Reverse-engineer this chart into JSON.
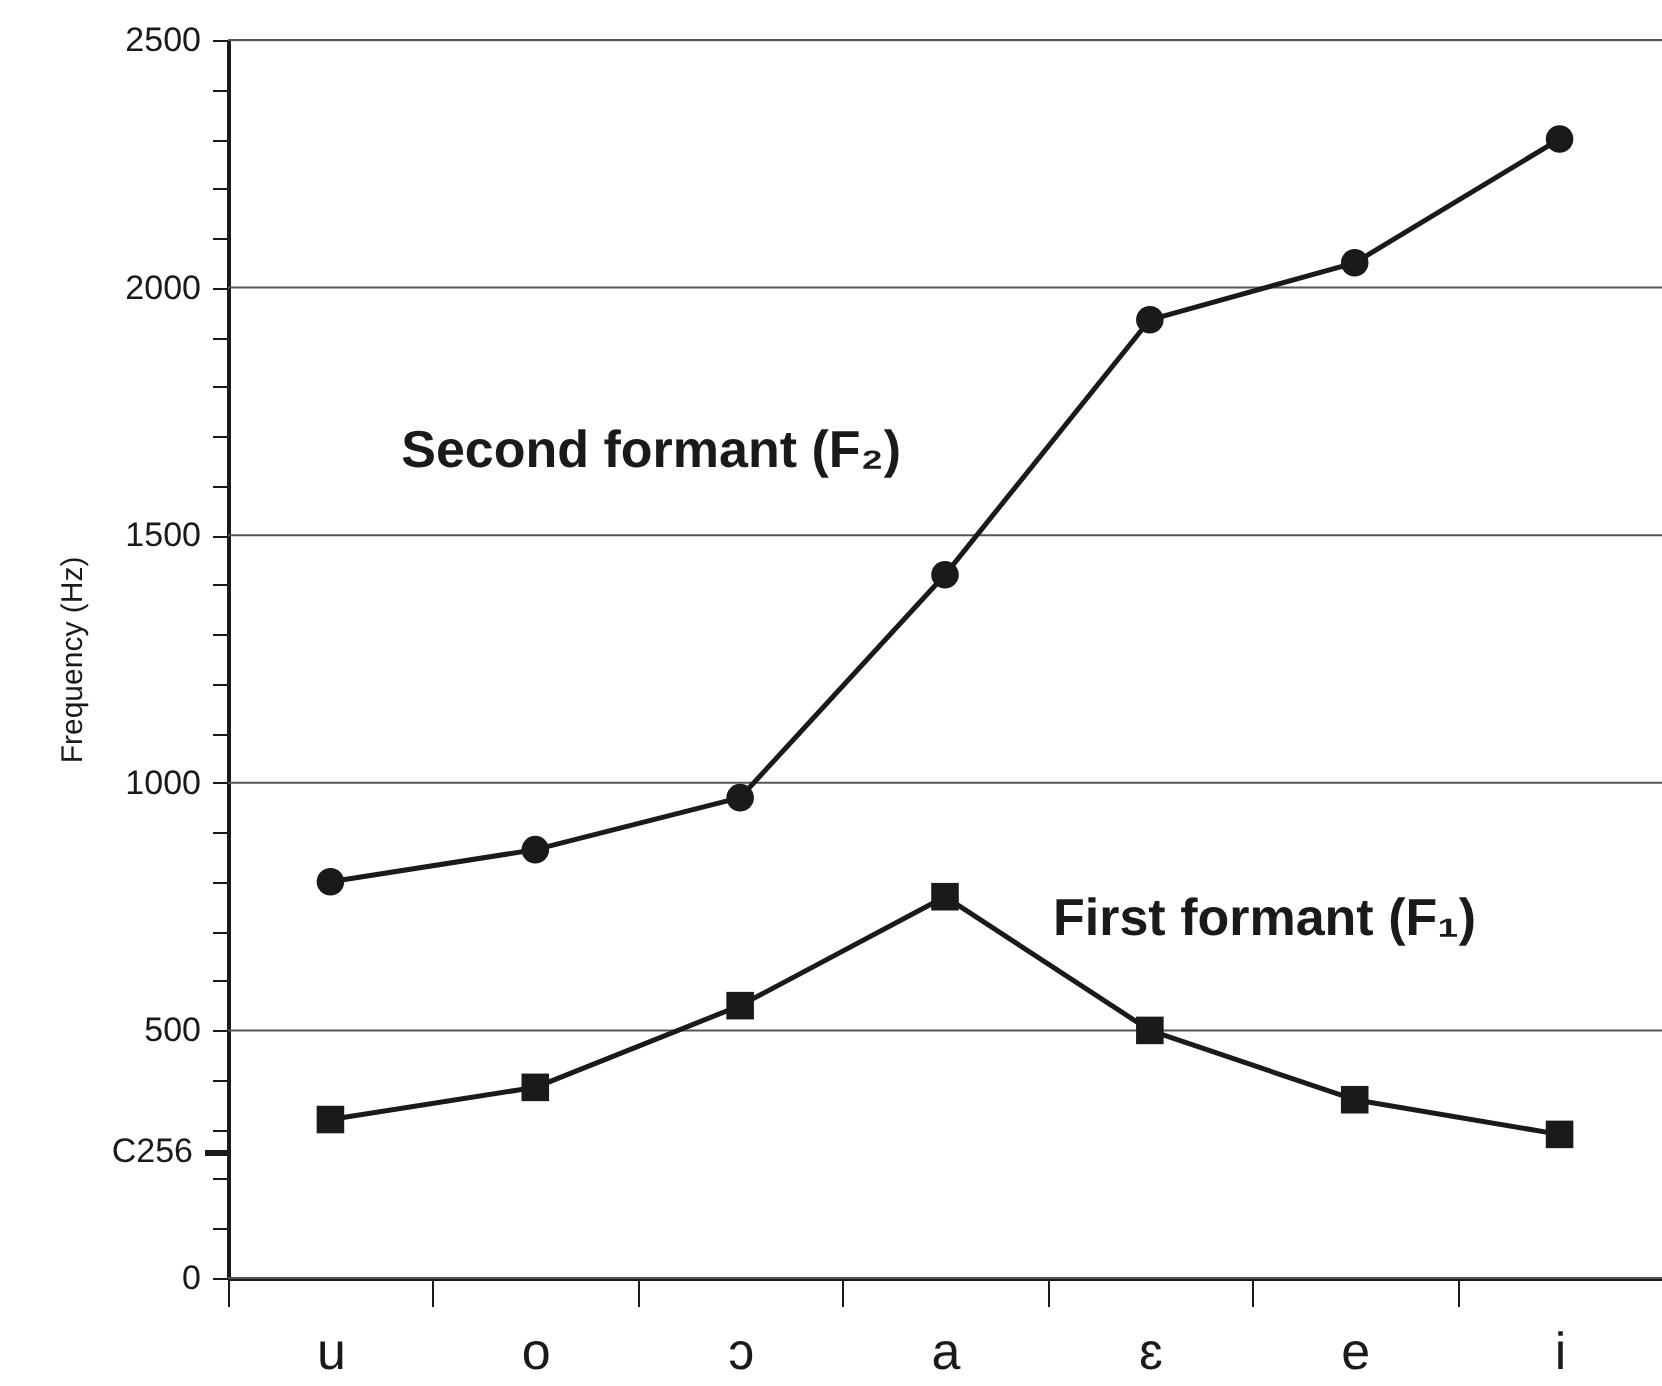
{
  "chart_data": {
    "type": "line",
    "categories": [
      "u",
      "o",
      "ɔ",
      "a",
      "ɛ",
      "e",
      "i"
    ],
    "ylabel": "Frequency (Hz)",
    "ylim": [
      0,
      2500
    ],
    "yticks": [
      0,
      {
        "value": 100,
        "label": null
      },
      {
        "value": 200,
        "label": null
      },
      {
        "value": 256,
        "label": "C256"
      },
      {
        "value": 300,
        "label": null
      },
      {
        "value": 400,
        "label": null
      },
      500,
      {
        "value": 600,
        "label": null
      },
      {
        "value": 700,
        "label": null
      },
      {
        "value": 800,
        "label": null
      },
      {
        "value": 900,
        "label": null
      },
      1000,
      {
        "value": 1100,
        "label": null
      },
      {
        "value": 1200,
        "label": null
      },
      {
        "value": 1300,
        "label": null
      },
      {
        "value": 1400,
        "label": null
      },
      1500,
      {
        "value": 1600,
        "label": null
      },
      {
        "value": 1700,
        "label": null
      },
      {
        "value": 1800,
        "label": null
      },
      {
        "value": 1900,
        "label": null
      },
      2000,
      {
        "value": 2100,
        "label": null
      },
      {
        "value": 2200,
        "label": null
      },
      {
        "value": 2300,
        "label": null
      },
      {
        "value": 2400,
        "label": null
      },
      2500
    ],
    "grid": "y",
    "line_style": "solid",
    "series": [
      {
        "name": "Second formant (F₂)",
        "color": "#1a1a1a",
        "marker": "circle",
        "values": [
          800,
          865,
          970,
          1420,
          1935,
          2050,
          2300
        ]
      },
      {
        "name": "First formant (F₁)",
        "color": "#1a1a1a",
        "marker": "square",
        "values": [
          320,
          385,
          550,
          770,
          500,
          360,
          290
        ]
      }
    ]
  }
}
